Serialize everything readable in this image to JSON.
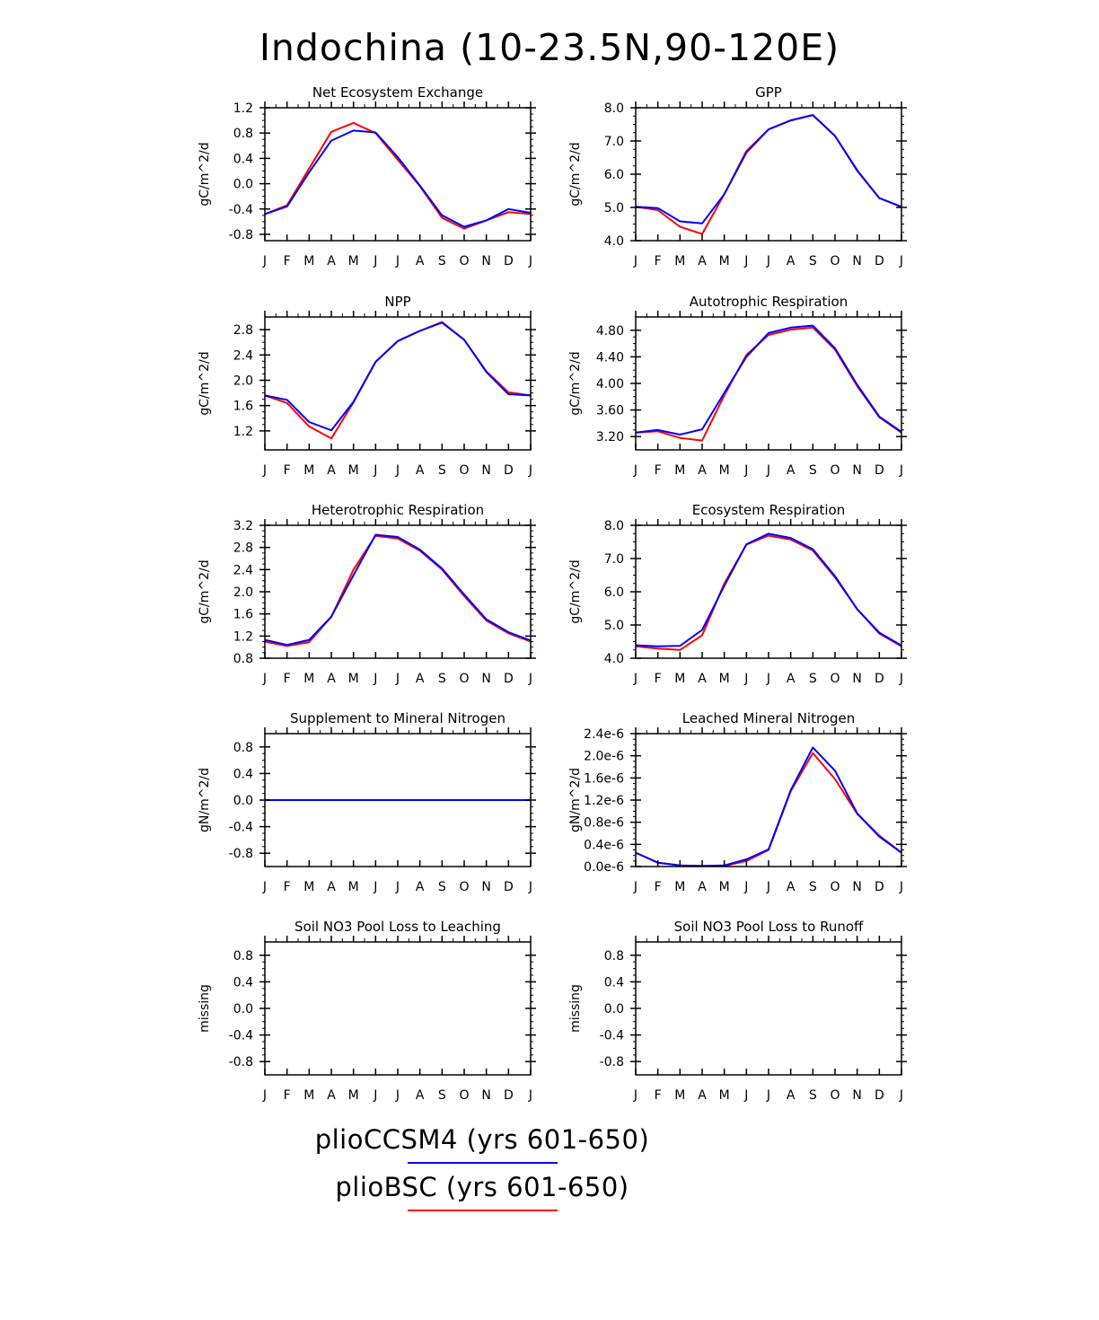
{
  "title": "Indochina (10-23.5N,90-120E)",
  "months": [
    "J",
    "F",
    "M",
    "A",
    "M",
    "J",
    "J",
    "A",
    "S",
    "O",
    "N",
    "D",
    "J"
  ],
  "colors": {
    "plioCCSM4": "#0000ff",
    "plioBSC": "#ff0000",
    "axes": "#000000"
  },
  "legend": [
    {
      "label": "plioCCSM4 (yrs 601-650)",
      "color": "#0000ff"
    },
    {
      "label": "plioBSC (yrs 601-650)",
      "color": "#ff0000"
    }
  ],
  "chart_data": [
    {
      "type": "line",
      "title": "Net Ecosystem Exchange",
      "ylabel": "gC/m^2/d",
      "ylim": [
        -0.9,
        1.2
      ],
      "yticks": [
        -0.8,
        -0.4,
        0.0,
        0.4,
        0.8,
        1.2
      ],
      "ytick_labels": [
        "-0.8",
        "-0.4",
        "0.0",
        "0.4",
        "0.8",
        "1.2"
      ],
      "series": [
        {
          "name": "plioBSC",
          "color": "#ff0000",
          "values": [
            -0.48,
            -0.34,
            0.24,
            0.82,
            0.96,
            0.8,
            0.38,
            -0.04,
            -0.54,
            -0.71,
            -0.58,
            -0.45,
            -0.48
          ]
        },
        {
          "name": "plioCCSM4",
          "color": "#0000ff",
          "values": [
            -0.48,
            -0.36,
            0.18,
            0.68,
            0.84,
            0.81,
            0.42,
            -0.03,
            -0.5,
            -0.68,
            -0.58,
            -0.4,
            -0.46
          ]
        }
      ]
    },
    {
      "type": "line",
      "title": "GPP",
      "ylabel": "gC/m^2/d",
      "ylim": [
        4.0,
        8.0
      ],
      "yticks": [
        4.0,
        5.0,
        6.0,
        7.0,
        8.0
      ],
      "ytick_labels": [
        "4.0",
        "5.0",
        "6.0",
        "7.0",
        "8.0"
      ],
      "series": [
        {
          "name": "plioBSC",
          "color": "#ff0000",
          "values": [
            5.02,
            4.92,
            4.42,
            4.2,
            5.4,
            6.7,
            7.35,
            7.62,
            7.78,
            7.15,
            6.1,
            5.28,
            5.02
          ]
        },
        {
          "name": "plioCCSM4",
          "color": "#0000ff",
          "values": [
            5.02,
            4.98,
            4.58,
            4.52,
            5.4,
            6.65,
            7.35,
            7.62,
            7.78,
            7.15,
            6.12,
            5.28,
            5.02
          ]
        }
      ]
    },
    {
      "type": "line",
      "title": "NPP",
      "ylabel": "gC/m^2/d",
      "ylim": [
        0.9,
        3.0
      ],
      "yticks": [
        1.2,
        1.6,
        2.0,
        2.4,
        2.8
      ],
      "ytick_labels": [
        "1.2",
        "1.6",
        "2.0",
        "2.4",
        "2.8"
      ],
      "series": [
        {
          "name": "plioBSC",
          "color": "#ff0000",
          "values": [
            1.76,
            1.64,
            1.27,
            1.08,
            1.65,
            2.29,
            2.62,
            2.78,
            2.92,
            2.64,
            2.14,
            1.81,
            1.76
          ]
        },
        {
          "name": "plioCCSM4",
          "color": "#0000ff",
          "values": [
            1.76,
            1.69,
            1.34,
            1.21,
            1.66,
            2.29,
            2.62,
            2.78,
            2.91,
            2.64,
            2.13,
            1.78,
            1.76
          ]
        }
      ]
    },
    {
      "type": "line",
      "title": "Autotrophic Respiration",
      "ylabel": "gC/m^2/d",
      "ylim": [
        3.0,
        5.0
      ],
      "yticks": [
        3.2,
        3.6,
        4.0,
        4.4,
        4.8
      ],
      "ytick_labels": [
        "3.20",
        "3.60",
        "4.00",
        "4.40",
        "4.80"
      ],
      "series": [
        {
          "name": "plioBSC",
          "color": "#ff0000",
          "values": [
            3.26,
            3.28,
            3.18,
            3.14,
            3.82,
            4.43,
            4.73,
            4.81,
            4.84,
            4.51,
            3.96,
            3.49,
            3.26
          ]
        },
        {
          "name": "plioCCSM4",
          "color": "#0000ff",
          "values": [
            3.26,
            3.3,
            3.23,
            3.31,
            3.86,
            4.4,
            4.76,
            4.84,
            4.87,
            4.53,
            3.98,
            3.5,
            3.27
          ]
        }
      ]
    },
    {
      "type": "line",
      "title": "Heterotrophic Respiration",
      "ylabel": "gC/m^2/d",
      "ylim": [
        0.8,
        3.2
      ],
      "yticks": [
        0.8,
        1.2,
        1.6,
        2.0,
        2.4,
        2.8,
        3.2
      ],
      "ytick_labels": [
        "0.8",
        "1.2",
        "1.6",
        "2.0",
        "2.4",
        "2.8",
        "3.2"
      ],
      "series": [
        {
          "name": "plioBSC",
          "color": "#ff0000",
          "values": [
            1.1,
            1.02,
            1.09,
            1.55,
            2.4,
            3.01,
            2.96,
            2.74,
            2.4,
            1.92,
            1.48,
            1.25,
            1.1
          ]
        },
        {
          "name": "plioCCSM4",
          "color": "#0000ff",
          "values": [
            1.13,
            1.04,
            1.13,
            1.55,
            2.3,
            3.03,
            2.99,
            2.76,
            2.42,
            1.95,
            1.5,
            1.27,
            1.12
          ]
        }
      ]
    },
    {
      "type": "line",
      "title": "Ecosystem Respiration",
      "ylabel": "gC/m^2/d",
      "ylim": [
        4.0,
        8.0
      ],
      "yticks": [
        4.0,
        5.0,
        6.0,
        7.0,
        8.0
      ],
      "ytick_labels": [
        "4.0",
        "5.0",
        "6.0",
        "7.0",
        "8.0"
      ],
      "series": [
        {
          "name": "plioBSC",
          "color": "#ff0000",
          "values": [
            4.36,
            4.29,
            4.25,
            4.69,
            6.25,
            7.42,
            7.69,
            7.57,
            7.24,
            6.43,
            5.48,
            4.74,
            4.36
          ]
        },
        {
          "name": "plioCCSM4",
          "color": "#0000ff",
          "values": [
            4.39,
            4.36,
            4.37,
            4.85,
            6.18,
            7.43,
            7.75,
            7.62,
            7.28,
            6.47,
            5.47,
            4.77,
            4.38
          ]
        }
      ]
    },
    {
      "type": "line",
      "title": "Supplement to Mineral Nitrogen",
      "ylabel": "gN/m^2/d",
      "ylim": [
        -1.0,
        1.0
      ],
      "yticks": [
        -0.8,
        -0.4,
        0.0,
        0.4,
        0.8
      ],
      "ytick_labels": [
        "-0.8",
        "-0.4",
        "0.0",
        "0.4",
        "0.8"
      ],
      "series": [
        {
          "name": "plioBSC",
          "color": "#ff0000",
          "values": [
            0,
            0,
            0,
            0,
            0,
            0,
            0,
            0,
            0,
            0,
            0,
            0,
            0
          ]
        },
        {
          "name": "plioCCSM4",
          "color": "#0000ff",
          "values": [
            0,
            0,
            0,
            0,
            0,
            0,
            0,
            0,
            0,
            0,
            0,
            0,
            0
          ]
        }
      ]
    },
    {
      "type": "line",
      "title": "Leached Mineral Nitrogen",
      "ylabel": "gN/m^2/d",
      "ylim": [
        0,
        2.4e-06
      ],
      "yticks": [
        0,
        4e-07,
        8e-07,
        1.2e-06,
        1.6e-06,
        2e-06,
        2.4e-06
      ],
      "ytick_labels": [
        "0.0e-6",
        "0.4e-6",
        "0.8e-6",
        "1.2e-6",
        "1.6e-6",
        "2.0e-6",
        "2.4e-6"
      ],
      "series": [
        {
          "name": "plioBSC",
          "color": "#ff0000",
          "values": [
            2.5e-07,
            7e-08,
            2e-08,
            1e-08,
            1e-08,
            1e-07,
            3e-07,
            1.36e-06,
            2.05e-06,
            1.58e-06,
            9.5e-07,
            5.6e-07,
            2.5e-07
          ]
        },
        {
          "name": "plioCCSM4",
          "color": "#0000ff",
          "values": [
            2.5e-07,
            7e-08,
            2e-08,
            1e-08,
            2e-08,
            1.3e-07,
            3.1e-07,
            1.38e-06,
            2.15e-06,
            1.73e-06,
            9.6e-07,
            5.4e-07,
            2.5e-07
          ]
        }
      ]
    },
    {
      "type": "line",
      "title": "Soil NO3 Pool Loss to Leaching",
      "ylabel": "missing",
      "ylim": [
        -1.0,
        1.0
      ],
      "yticks": [
        -0.8,
        -0.4,
        0.0,
        0.4,
        0.8
      ],
      "ytick_labels": [
        "-0.8",
        "-0.4",
        "0.0",
        "0.4",
        "0.8"
      ],
      "series": []
    },
    {
      "type": "line",
      "title": "Soil NO3 Pool Loss to Runoff",
      "ylabel": "missing",
      "ylim": [
        -1.0,
        1.0
      ],
      "yticks": [
        -0.8,
        -0.4,
        0.0,
        0.4,
        0.8
      ],
      "ytick_labels": [
        "-0.8",
        "-0.4",
        "0.0",
        "0.4",
        "0.8"
      ],
      "series": []
    }
  ]
}
